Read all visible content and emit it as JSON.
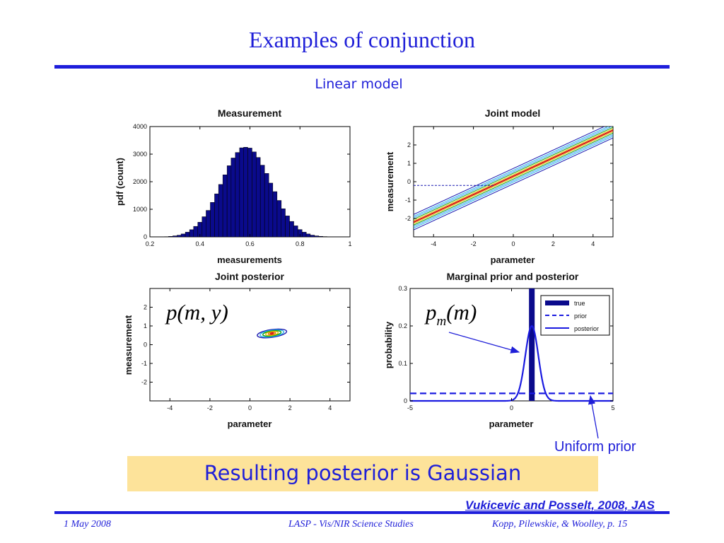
{
  "slide": {
    "title": "Examples of conjunction",
    "subtitle": "Linear model",
    "callout": "Resulting posterior is Gaussian",
    "uniform_prior_label": "Uniform prior",
    "citation": "Vukicevic and Posselt, 2008, JAS",
    "footer": {
      "date": "1 May 2008",
      "center": "LASP - Vis/NIR Science Studies",
      "right": "Kopp, Pilewskie, & Woolley, p. 15"
    }
  },
  "colors": {
    "accent": "#1e1edb",
    "callout_bg": "#fde39a",
    "bar_fill": "#0a0a8c",
    "true_line": "#0a0a8c",
    "prior_posterior": "#1a1ae0",
    "fit_line": "#d81010"
  },
  "chart_data": [
    {
      "type": "bar",
      "title": "Measurement",
      "xlabel": "measurements",
      "ylabel": "pdf (count)",
      "xlim": [
        0.2,
        1.0
      ],
      "ylim": [
        0,
        4000
      ],
      "xticks": [
        "0.2",
        "0.4",
        "0.6",
        "0.8",
        "1"
      ],
      "yticks": [
        "0",
        "1000",
        "2000",
        "3000",
        "4000"
      ],
      "bin_width": 0.0167,
      "x": [
        0.25,
        0.267,
        0.283,
        0.3,
        0.317,
        0.333,
        0.35,
        0.367,
        0.383,
        0.4,
        0.417,
        0.433,
        0.45,
        0.467,
        0.483,
        0.5,
        0.517,
        0.533,
        0.55,
        0.567,
        0.583,
        0.6,
        0.617,
        0.633,
        0.65,
        0.667,
        0.683,
        0.7,
        0.717,
        0.733,
        0.75,
        0.767,
        0.783,
        0.8,
        0.817,
        0.833,
        0.85,
        0.867,
        0.883,
        0.9,
        0.917,
        0.933,
        0.95
      ],
      "values": [
        4,
        8,
        18,
        37,
        60,
        105,
        170,
        260,
        380,
        530,
        730,
        960,
        1250,
        1560,
        1900,
        2250,
        2580,
        2860,
        3060,
        3230,
        3250,
        3220,
        3080,
        2880,
        2600,
        2300,
        1950,
        1640,
        1320,
        1020,
        760,
        560,
        400,
        265,
        170,
        105,
        62,
        36,
        20,
        10,
        5,
        3,
        2
      ]
    },
    {
      "type": "line",
      "title": "Joint model",
      "xlabel": "parameter",
      "ylabel": "measurement",
      "xlim": [
        -5,
        5
      ],
      "ylim": [
        -3,
        3
      ],
      "xticks": [
        "-4",
        "-2",
        "0",
        "2",
        "4"
      ],
      "yticks": [
        "-2",
        "-1",
        "0",
        "1",
        "2"
      ],
      "fit": {
        "slope": 0.5,
        "intercept": 0.3
      },
      "band_offsets": [
        -0.42,
        -0.32,
        -0.24,
        -0.16,
        -0.08,
        0.08,
        0.16,
        0.24,
        0.32,
        0.42
      ],
      "band_colors": [
        "#1a1ab0",
        "#2bb3e6",
        "#3aa0ff",
        "#10a010",
        "#e0c000",
        "#e0c000",
        "#10a010",
        "#3aa0ff",
        "#2bb3e6",
        "#1a1ab0"
      ],
      "measurement_level": -0.2
    },
    {
      "type": "heatmap",
      "title": "Joint posterior",
      "xlabel": "parameter",
      "ylabel": "measurement",
      "xlim": [
        -5,
        5
      ],
      "ylim": [
        -3,
        3
      ],
      "xticks": [
        "-4",
        "-2",
        "0",
        "2",
        "4"
      ],
      "yticks": [
        "-2",
        "-1",
        "0",
        "1",
        "2"
      ],
      "center": [
        1.1,
        0.6
      ],
      "annotation": "p(m, y)"
    },
    {
      "type": "line",
      "title": "Marginal prior and posterior",
      "xlabel": "parameter",
      "ylabel": "probability",
      "xlim": [
        -5,
        5
      ],
      "ylim": [
        0,
        0.3
      ],
      "xticks": [
        "-5",
        "0",
        "5"
      ],
      "yticks": [
        "0",
        "0.1",
        "0.2",
        "0.3"
      ],
      "legend": [
        "true",
        "prior",
        "posterior"
      ],
      "legend_position": "top-right",
      "true_value": 1.0,
      "prior_level": 0.02,
      "posterior": {
        "peak": 0.2,
        "mean": 1.0,
        "sd": 0.32
      },
      "annotation": "p_m(m)"
    }
  ]
}
